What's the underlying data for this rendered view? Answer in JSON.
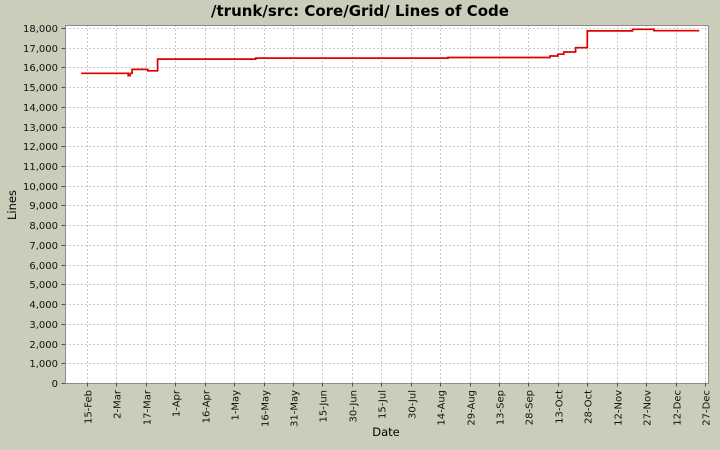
{
  "window": {
    "background": "#ccccbb"
  },
  "chart_data": {
    "type": "line",
    "title": "/trunk/src: Core/Grid/ Lines of Code",
    "xlabel": "Date",
    "ylabel": "Lines",
    "legend_position": "none",
    "grid": true,
    "line_style": "step-after",
    "ylim": [
      0,
      18000
    ],
    "y_tick_step": 1000,
    "x_tick_interval_days": 15,
    "x_tick_labels": [
      "15-Feb",
      "2-Mar",
      "17-Mar",
      "1-Apr",
      "16-Apr",
      "1-May",
      "16-May",
      "31-May",
      "15-Jun",
      "30-Jun",
      "15-Jul",
      "30-Jul",
      "14-Aug",
      "29-Aug",
      "13-Sep",
      "28-Sep",
      "13-Oct",
      "28-Oct",
      "12-Nov",
      "27-Nov",
      "12-Dec",
      "27-Dec"
    ],
    "colors": {
      "line": "#dd0000",
      "background": "#ccccbb",
      "plot_background": "#ffffff",
      "gridline": "#c9c9c9",
      "plot_outline": "#8c8c8c",
      "tick_mark": "#4d4d4d",
      "text": "#000000"
    },
    "series": [
      {
        "name": "Lines of Code",
        "step": "after",
        "points": [
          {
            "date": "12-Feb",
            "day": -3,
            "loc": 15700
          },
          {
            "date": "8-Mar",
            "day": 21,
            "loc": 15580
          },
          {
            "date": "9-Mar",
            "day": 22,
            "loc": 15700
          },
          {
            "date": "10-Mar",
            "day": 23,
            "loc": 15900
          },
          {
            "date": "18-Mar",
            "day": 31,
            "loc": 15830
          },
          {
            "date": "23-Mar",
            "day": 36,
            "loc": 16420
          },
          {
            "date": "12-May",
            "day": 86,
            "loc": 16470
          },
          {
            "date": "18-Aug",
            "day": 184,
            "loc": 16500
          },
          {
            "date": "9-Oct",
            "day": 236,
            "loc": 16580
          },
          {
            "date": "13-Oct",
            "day": 240,
            "loc": 16670
          },
          {
            "date": "16-Oct",
            "day": 243,
            "loc": 16780
          },
          {
            "date": "22-Oct",
            "day": 249,
            "loc": 17000
          },
          {
            "date": "28-Oct",
            "day": 255,
            "loc": 17850
          },
          {
            "date": "20-Nov",
            "day": 278,
            "loc": 17930
          },
          {
            "date": "1-Dec",
            "day": 289,
            "loc": 17860
          },
          {
            "date": "24-Dec",
            "day": 312,
            "loc": 17860
          }
        ]
      }
    ]
  }
}
